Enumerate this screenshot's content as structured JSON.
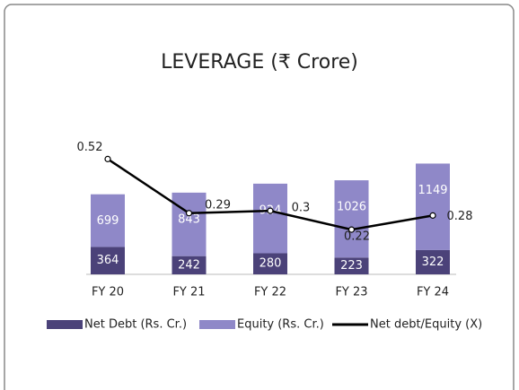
{
  "chart_data": {
    "type": "bar-line",
    "title": "LEVERAGE (₹ Crore)",
    "categories": [
      "FY 20",
      "FY 21",
      "FY 22",
      "FY 23",
      "FY 24"
    ],
    "series": [
      {
        "name": "Net Debt (Rs. Cr.)",
        "color": "#4b4279",
        "values": [
          364,
          242,
          280,
          223,
          322
        ]
      },
      {
        "name": "Equity (Rs. Cr.)",
        "color": "#8f88c8",
        "values": [
          699,
          843,
          924,
          1026,
          1149
        ]
      },
      {
        "name": "Net debt/Equity (X)",
        "color": "#000000",
        "axis": "y2",
        "values": [
          0.52,
          0.29,
          0.3,
          0.22,
          0.28
        ]
      }
    ],
    "ylim": [
      0,
      1500
    ],
    "y2lim": [
      0.03,
      0.51
    ],
    "stacked": true,
    "legend": "bottom"
  }
}
